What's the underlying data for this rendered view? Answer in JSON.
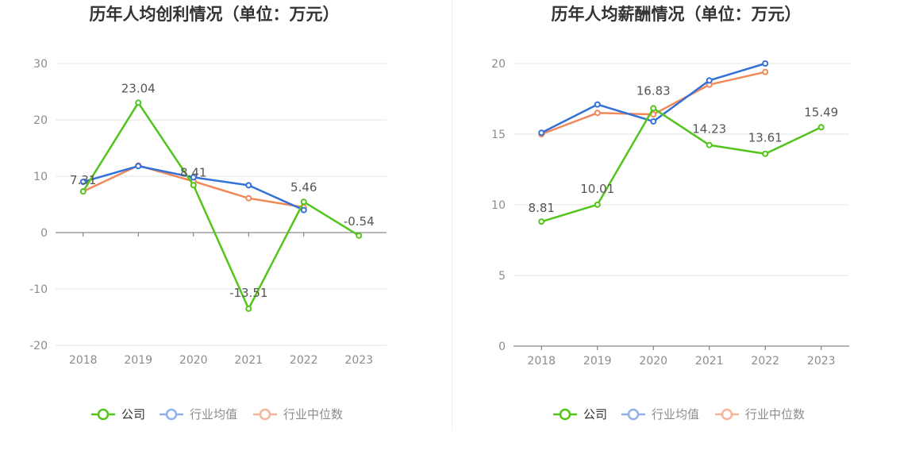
{
  "chart_data": [
    {
      "type": "line",
      "title": "历年人均创利情况（单位：万元）",
      "categories": [
        "2018",
        "2019",
        "2020",
        "2021",
        "2022",
        "2023"
      ],
      "ylim": [
        -20,
        30
      ],
      "yticks": [
        30,
        20,
        10,
        0,
        -10,
        -20
      ],
      "grid": true,
      "legend_position": "bottom",
      "series": [
        {
          "name": "公司",
          "color": "#52c41a",
          "values": [
            7.31,
            23.04,
            8.41,
            -13.51,
            5.46,
            -0.54
          ],
          "labels": [
            "7.31",
            "23.04",
            "8.41",
            "-13.51",
            "5.46",
            "-0.54"
          ]
        },
        {
          "name": "行业均值",
          "color": "#3370d8",
          "values": [
            9.0,
            11.8,
            9.8,
            8.4,
            4.0,
            null
          ]
        },
        {
          "name": "行业中位数",
          "color": "#f0885a",
          "values": [
            7.3,
            11.9,
            9.1,
            6.1,
            4.5,
            null
          ]
        }
      ]
    },
    {
      "type": "line",
      "title": "历年人均薪酬情况（单位：万元）",
      "categories": [
        "2018",
        "2019",
        "2020",
        "2021",
        "2022",
        "2023"
      ],
      "ylim": [
        0,
        20
      ],
      "yticks": [
        20,
        15,
        10,
        5,
        0
      ],
      "grid": true,
      "legend_position": "bottom",
      "series": [
        {
          "name": "公司",
          "color": "#52c41a",
          "values": [
            8.81,
            10.01,
            16.83,
            14.23,
            13.61,
            15.49
          ],
          "labels": [
            "8.81",
            "10.01",
            "16.83",
            "14.23",
            "13.61",
            "15.49"
          ]
        },
        {
          "name": "行业均值",
          "color": "#3370d8",
          "values": [
            15.1,
            17.1,
            15.9,
            18.8,
            20.0,
            null
          ]
        },
        {
          "name": "行业中位数",
          "color": "#f0885a",
          "values": [
            15.0,
            16.5,
            16.4,
            18.5,
            19.4,
            null
          ]
        }
      ]
    }
  ]
}
